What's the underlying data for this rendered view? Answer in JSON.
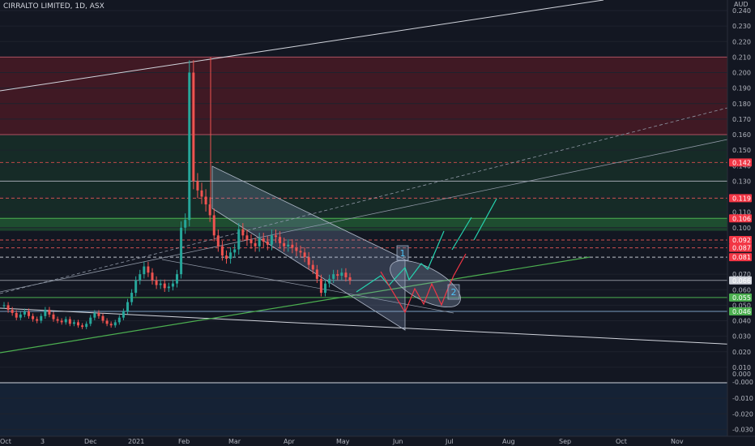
{
  "header": {
    "title": "CIRRALTO LIMITED, 1D, ASX"
  },
  "colors": {
    "bg": "#131722",
    "up": "#26a69a",
    "down": "#ef5350",
    "red_tag": "#f23645",
    "green_tag": "#4caf50",
    "white": "#d1d4dc"
  },
  "chart_data": {
    "type": "candlestick",
    "title": "CIRRALTO LIMITED, 1D, ASX",
    "currency": "AUD",
    "y_ticks": [
      "0.240",
      "0.230",
      "0.220",
      "0.210",
      "0.200",
      "0.190",
      "0.180",
      "0.170",
      "0.160",
      "0.150",
      "0.140",
      "0.130",
      "0.120",
      "0.110",
      "0.100",
      "0.090",
      "0.080",
      "0.070",
      "0.060",
      "0.050",
      "0.040",
      "0.030",
      "0.020",
      "0.010",
      "0.000",
      "-0.000",
      "-0.010",
      "-0.020",
      "-0.030"
    ],
    "x_ticks": [
      "Oct",
      "3",
      "Dec",
      "2021",
      "Feb",
      "Mar",
      "Apr",
      "May",
      "Jun",
      "Jul",
      "Aug",
      "Sep",
      "Oct",
      "Nov"
    ],
    "price_tags": [
      {
        "label": "0.142",
        "value": 0.142,
        "color": "red"
      },
      {
        "label": "0.119",
        "value": 0.119,
        "color": "red"
      },
      {
        "label": "0.106",
        "value": 0.106,
        "color": "red"
      },
      {
        "label": "0.092",
        "value": 0.092,
        "color": "red"
      },
      {
        "label": "0.087",
        "value": 0.087,
        "color": "red"
      },
      {
        "label": "0.081",
        "value": 0.081,
        "color": "red"
      },
      {
        "label": "0.066",
        "value": 0.066,
        "color": "white"
      },
      {
        "label": "0.055",
        "value": 0.055,
        "color": "green"
      },
      {
        "label": "0.046",
        "value": 0.046,
        "color": "green"
      }
    ],
    "zones": [
      {
        "name": "red-zone",
        "from": 0.21,
        "to": 0.16
      },
      {
        "name": "green-zone",
        "from": 0.16,
        "to": 0.1
      }
    ],
    "annotations": [
      "1",
      "2"
    ],
    "series": [
      {
        "name": "close",
        "values": [
          0.05,
          0.047,
          0.045,
          0.042,
          0.044,
          0.046,
          0.043,
          0.041,
          0.04,
          0.043,
          0.047,
          0.044,
          0.041,
          0.04,
          0.039,
          0.041,
          0.038,
          0.039,
          0.037,
          0.036,
          0.038,
          0.042,
          0.045,
          0.043,
          0.04,
          0.038,
          0.037,
          0.039,
          0.042,
          0.046,
          0.052,
          0.058,
          0.066,
          0.07,
          0.075,
          0.071,
          0.066,
          0.063,
          0.064,
          0.061,
          0.062,
          0.064,
          0.07,
          0.1,
          0.105,
          0.2,
          0.13,
          0.124,
          0.12,
          0.115,
          0.108,
          0.095,
          0.088,
          0.082,
          0.08,
          0.084,
          0.086,
          0.099,
          0.095,
          0.092,
          0.09,
          0.088,
          0.093,
          0.091,
          0.089,
          0.095,
          0.094,
          0.09,
          0.088,
          0.089,
          0.087,
          0.085,
          0.084,
          0.081,
          0.076,
          0.073,
          0.067,
          0.058,
          0.064,
          0.067,
          0.07,
          0.069,
          0.071,
          0.068,
          0.066
        ]
      }
    ]
  }
}
